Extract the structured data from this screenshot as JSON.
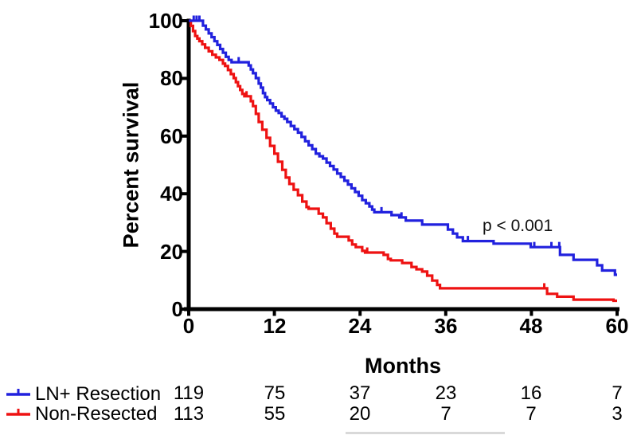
{
  "chart_data": {
    "type": "line",
    "subtype": "kaplan-meier-step",
    "title": "",
    "xlabel": "Months",
    "ylabel": "Percent survival",
    "annotation": "p < 0.001",
    "xlim": [
      0,
      60
    ],
    "ylim": [
      0,
      100
    ],
    "grid": false,
    "legend_position": "bottom-left",
    "axis_color": "#000000",
    "background": "#ffffff",
    "x_ticks": [
      0,
      12,
      24,
      36,
      48,
      60
    ],
    "y_ticks": [
      100,
      80,
      60,
      40,
      20,
      0
    ],
    "x_tick_labels": [
      "0",
      "12",
      "24",
      "36",
      "48",
      "60"
    ],
    "y_tick_labels": [
      "100",
      "80",
      "60",
      "40",
      "20",
      "0"
    ],
    "at_risk_times": [
      0,
      12,
      24,
      36,
      48,
      60
    ],
    "series": [
      {
        "name": "LN+ Resection",
        "color": "#2121DE",
        "at_risk": [
          119,
          75,
          37,
          23,
          16,
          7
        ],
        "steps": [
          [
            0,
            100
          ],
          [
            2.0,
            98.3
          ],
          [
            2.4,
            97.0
          ],
          [
            2.8,
            95.6
          ],
          [
            3.2,
            94.3
          ],
          [
            3.6,
            92.9
          ],
          [
            4.0,
            91.6
          ],
          [
            4.4,
            90.2
          ],
          [
            4.8,
            88.9
          ],
          [
            5.2,
            87.5
          ],
          [
            5.6,
            86.4
          ],
          [
            6.0,
            85.6
          ],
          [
            8.4,
            84.5
          ],
          [
            8.7,
            83.1
          ],
          [
            9.0,
            81.8
          ],
          [
            9.4,
            80.1
          ],
          [
            9.8,
            78.2
          ],
          [
            10.1,
            76.8
          ],
          [
            10.4,
            74.9
          ],
          [
            10.7,
            73.5
          ],
          [
            11.0,
            72.5
          ],
          [
            11.4,
            71.3
          ],
          [
            11.8,
            70.0
          ],
          [
            12.2,
            68.8
          ],
          [
            12.6,
            68.0
          ],
          [
            13.0,
            66.8
          ],
          [
            13.4,
            66.0
          ],
          [
            13.8,
            64.9
          ],
          [
            14.3,
            63.5
          ],
          [
            14.8,
            62.4
          ],
          [
            15.3,
            61.2
          ],
          [
            15.8,
            59.7
          ],
          [
            16.3,
            58.2
          ],
          [
            16.8,
            56.8
          ],
          [
            17.3,
            55.5
          ],
          [
            17.8,
            53.9
          ],
          [
            18.3,
            53.0
          ],
          [
            18.8,
            52.2
          ],
          [
            19.3,
            50.8
          ],
          [
            19.8,
            49.6
          ],
          [
            20.3,
            48.4
          ],
          [
            20.8,
            47.0
          ],
          [
            21.3,
            45.8
          ],
          [
            21.8,
            44.5
          ],
          [
            22.3,
            43.2
          ],
          [
            22.8,
            41.9
          ],
          [
            23.3,
            40.6
          ],
          [
            23.8,
            39.3
          ],
          [
            24.3,
            37.8
          ],
          [
            24.8,
            36.7
          ],
          [
            25.3,
            35.6
          ],
          [
            25.7,
            34.5
          ],
          [
            26.0,
            33.6
          ],
          [
            28.4,
            32.6
          ],
          [
            29.5,
            31.8
          ],
          [
            30.4,
            30.7
          ],
          [
            32.7,
            29.3
          ],
          [
            36.3,
            27.6
          ],
          [
            37.0,
            26.2
          ],
          [
            37.6,
            24.9
          ],
          [
            38.4,
            23.6
          ],
          [
            42.7,
            22.7
          ],
          [
            47.9,
            21.5
          ],
          [
            52.0,
            18.8
          ],
          [
            53.9,
            17.1
          ],
          [
            57.2,
            15.2
          ],
          [
            57.9,
            13.4
          ],
          [
            59.7,
            11.9
          ],
          [
            60,
            11.9
          ]
        ],
        "censor_ticks": [
          [
            0.7,
            100
          ],
          [
            1.1,
            100
          ],
          [
            1.5,
            100
          ],
          [
            7.0,
            85.6
          ],
          [
            27.0,
            33.6
          ],
          [
            29.8,
            31.8
          ],
          [
            39.1,
            23.6
          ],
          [
            48.4,
            21.5
          ],
          [
            50.8,
            21.5
          ],
          [
            51.9,
            21.5
          ]
        ]
      },
      {
        "name": "Non-Resected",
        "color": "#EE1212",
        "at_risk": [
          113,
          55,
          20,
          7,
          7,
          3
        ],
        "steps": [
          [
            0,
            100
          ],
          [
            0.3,
            98.2
          ],
          [
            0.6,
            96.4
          ],
          [
            0.9,
            94.7
          ],
          [
            1.2,
            93.8
          ],
          [
            1.5,
            92.9
          ],
          [
            1.9,
            91.8
          ],
          [
            2.3,
            90.6
          ],
          [
            2.8,
            89.4
          ],
          [
            3.3,
            88.2
          ],
          [
            3.8,
            87.3
          ],
          [
            4.3,
            86.4
          ],
          [
            4.8,
            85.1
          ],
          [
            5.1,
            84.3
          ],
          [
            5.5,
            82.9
          ],
          [
            5.9,
            81.5
          ],
          [
            6.3,
            80.1
          ],
          [
            6.6,
            78.7
          ],
          [
            6.9,
            77.3
          ],
          [
            7.2,
            76.0
          ],
          [
            7.5,
            74.6
          ],
          [
            7.8,
            73.8
          ],
          [
            8.7,
            72.1
          ],
          [
            9.0,
            70.4
          ],
          [
            9.4,
            67.7
          ],
          [
            9.8,
            64.9
          ],
          [
            10.3,
            62.2
          ],
          [
            10.9,
            59.4
          ],
          [
            11.4,
            56.6
          ],
          [
            12.0,
            53.9
          ],
          [
            12.5,
            51.1
          ],
          [
            13.1,
            48.3
          ],
          [
            13.6,
            45.6
          ],
          [
            14.1,
            43.4
          ],
          [
            14.7,
            41.4
          ],
          [
            15.3,
            39.5
          ],
          [
            15.9,
            37.3
          ],
          [
            16.5,
            35.4
          ],
          [
            16.8,
            34.8
          ],
          [
            18.2,
            33.1
          ],
          [
            18.8,
            31.8
          ],
          [
            19.3,
            29.8
          ],
          [
            19.9,
            27.9
          ],
          [
            20.4,
            26.2
          ],
          [
            20.8,
            25.1
          ],
          [
            22.4,
            23.8
          ],
          [
            22.9,
            22.4
          ],
          [
            23.4,
            21.5
          ],
          [
            24.3,
            20.2
          ],
          [
            24.7,
            19.6
          ],
          [
            27.3,
            18.8
          ],
          [
            27.9,
            17.4
          ],
          [
            28.3,
            16.9
          ],
          [
            29.9,
            16.0
          ],
          [
            31.2,
            14.6
          ],
          [
            31.9,
            13.8
          ],
          [
            32.7,
            13.0
          ],
          [
            33.4,
            11.6
          ],
          [
            34.1,
            9.9
          ],
          [
            34.8,
            8.4
          ],
          [
            35.2,
            7.2
          ],
          [
            50.2,
            5.3
          ],
          [
            51.6,
            4.3
          ],
          [
            53.9,
            3.3
          ],
          [
            59.5,
            2.9
          ],
          [
            60,
            2.9
          ]
        ],
        "censor_ticks": [
          [
            8.1,
            73.8
          ],
          [
            25.0,
            19.6
          ],
          [
            49.8,
            7.2
          ]
        ]
      }
    ]
  }
}
